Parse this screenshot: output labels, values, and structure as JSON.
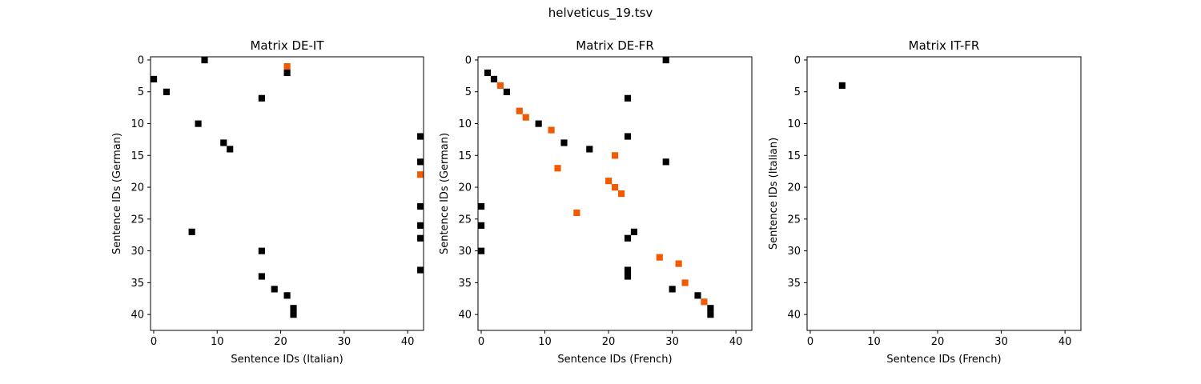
{
  "figure_title": "helveticus_19.tsv",
  "colors": {
    "black": "#000000",
    "orange": "#f05a00",
    "frame": "#000000",
    "background": "#ffffff"
  },
  "chart_data": [
    {
      "type": "heatmap",
      "title": "Matrix DE-IT",
      "xlabel": "Sentence IDs (Italian)",
      "ylabel": "Sentence IDs (German)",
      "xlim": [
        -0.5,
        42.5
      ],
      "ylim": [
        42.5,
        -0.5
      ],
      "x_ticks": [
        0,
        10,
        20,
        30,
        40
      ],
      "y_ticks": [
        0,
        5,
        10,
        15,
        20,
        25,
        30,
        35,
        40
      ],
      "grid": false,
      "cells": [
        {
          "x": 8,
          "y": 0,
          "color": "black"
        },
        {
          "x": 21,
          "y": 1,
          "color": "orange"
        },
        {
          "x": 21,
          "y": 2,
          "color": "black"
        },
        {
          "x": 0,
          "y": 3,
          "color": "black"
        },
        {
          "x": 2,
          "y": 5,
          "color": "black"
        },
        {
          "x": 17,
          "y": 6,
          "color": "black"
        },
        {
          "x": 7,
          "y": 10,
          "color": "black"
        },
        {
          "x": 42,
          "y": 12,
          "color": "black"
        },
        {
          "x": 11,
          "y": 13,
          "color": "black"
        },
        {
          "x": 12,
          "y": 14,
          "color": "black"
        },
        {
          "x": 42,
          "y": 16,
          "color": "black"
        },
        {
          "x": 42,
          "y": 18,
          "color": "orange"
        },
        {
          "x": 42,
          "y": 23,
          "color": "black"
        },
        {
          "x": 42,
          "y": 26,
          "color": "black"
        },
        {
          "x": 6,
          "y": 27,
          "color": "black"
        },
        {
          "x": 42,
          "y": 28,
          "color": "black"
        },
        {
          "x": 17,
          "y": 30,
          "color": "black"
        },
        {
          "x": 42,
          "y": 33,
          "color": "black"
        },
        {
          "x": 17,
          "y": 34,
          "color": "black"
        },
        {
          "x": 19,
          "y": 36,
          "color": "black"
        },
        {
          "x": 21,
          "y": 37,
          "color": "black"
        },
        {
          "x": 22,
          "y": 39,
          "color": "black"
        },
        {
          "x": 22,
          "y": 40,
          "color": "black"
        }
      ]
    },
    {
      "type": "heatmap",
      "title": "Matrix DE-FR",
      "xlabel": "Sentence IDs (French)",
      "ylabel": "Sentence IDs (German)",
      "xlim": [
        -0.5,
        42.5
      ],
      "ylim": [
        42.5,
        -0.5
      ],
      "x_ticks": [
        0,
        10,
        20,
        30,
        40
      ],
      "y_ticks": [
        0,
        5,
        10,
        15,
        20,
        25,
        30,
        35,
        40
      ],
      "grid": false,
      "cells": [
        {
          "x": 29,
          "y": 0,
          "color": "black"
        },
        {
          "x": 1,
          "y": 2,
          "color": "black"
        },
        {
          "x": 2,
          "y": 3,
          "color": "black"
        },
        {
          "x": 3,
          "y": 4,
          "color": "orange"
        },
        {
          "x": 4,
          "y": 5,
          "color": "black"
        },
        {
          "x": 23,
          "y": 6,
          "color": "black"
        },
        {
          "x": 6,
          "y": 8,
          "color": "orange"
        },
        {
          "x": 7,
          "y": 9,
          "color": "orange"
        },
        {
          "x": 9,
          "y": 10,
          "color": "black"
        },
        {
          "x": 11,
          "y": 11,
          "color": "orange"
        },
        {
          "x": 23,
          "y": 12,
          "color": "black"
        },
        {
          "x": 13,
          "y": 13,
          "color": "black"
        },
        {
          "x": 17,
          "y": 14,
          "color": "black"
        },
        {
          "x": 21,
          "y": 15,
          "color": "orange"
        },
        {
          "x": 29,
          "y": 16,
          "color": "black"
        },
        {
          "x": 12,
          "y": 17,
          "color": "orange"
        },
        {
          "x": 20,
          "y": 19,
          "color": "orange"
        },
        {
          "x": 21,
          "y": 20,
          "color": "orange"
        },
        {
          "x": 22,
          "y": 21,
          "color": "orange"
        },
        {
          "x": 0,
          "y": 23,
          "color": "black"
        },
        {
          "x": 15,
          "y": 24,
          "color": "orange"
        },
        {
          "x": 0,
          "y": 26,
          "color": "black"
        },
        {
          "x": 24,
          "y": 27,
          "color": "black"
        },
        {
          "x": 23,
          "y": 28,
          "color": "black"
        },
        {
          "x": 0,
          "y": 30,
          "color": "black"
        },
        {
          "x": 28,
          "y": 31,
          "color": "orange"
        },
        {
          "x": 31,
          "y": 32,
          "color": "orange"
        },
        {
          "x": 23,
          "y": 33,
          "color": "black"
        },
        {
          "x": 23,
          "y": 34,
          "color": "black"
        },
        {
          "x": 32,
          "y": 35,
          "color": "orange"
        },
        {
          "x": 30,
          "y": 36,
          "color": "black"
        },
        {
          "x": 34,
          "y": 37,
          "color": "black"
        },
        {
          "x": 35,
          "y": 38,
          "color": "orange"
        },
        {
          "x": 36,
          "y": 39,
          "color": "black"
        },
        {
          "x": 36,
          "y": 40,
          "color": "black"
        }
      ]
    },
    {
      "type": "heatmap",
      "title": "Matrix IT-FR",
      "xlabel": "Sentence IDs (French)",
      "ylabel": "Sentence IDs (Italian)",
      "xlim": [
        -0.5,
        42.5
      ],
      "ylim": [
        42.5,
        -0.5
      ],
      "x_ticks": [
        0,
        10,
        20,
        30,
        40
      ],
      "y_ticks": [
        0,
        5,
        10,
        15,
        20,
        25,
        30,
        35,
        40
      ],
      "grid": false,
      "cells": [
        {
          "x": 5,
          "y": 4,
          "color": "black"
        }
      ]
    }
  ]
}
